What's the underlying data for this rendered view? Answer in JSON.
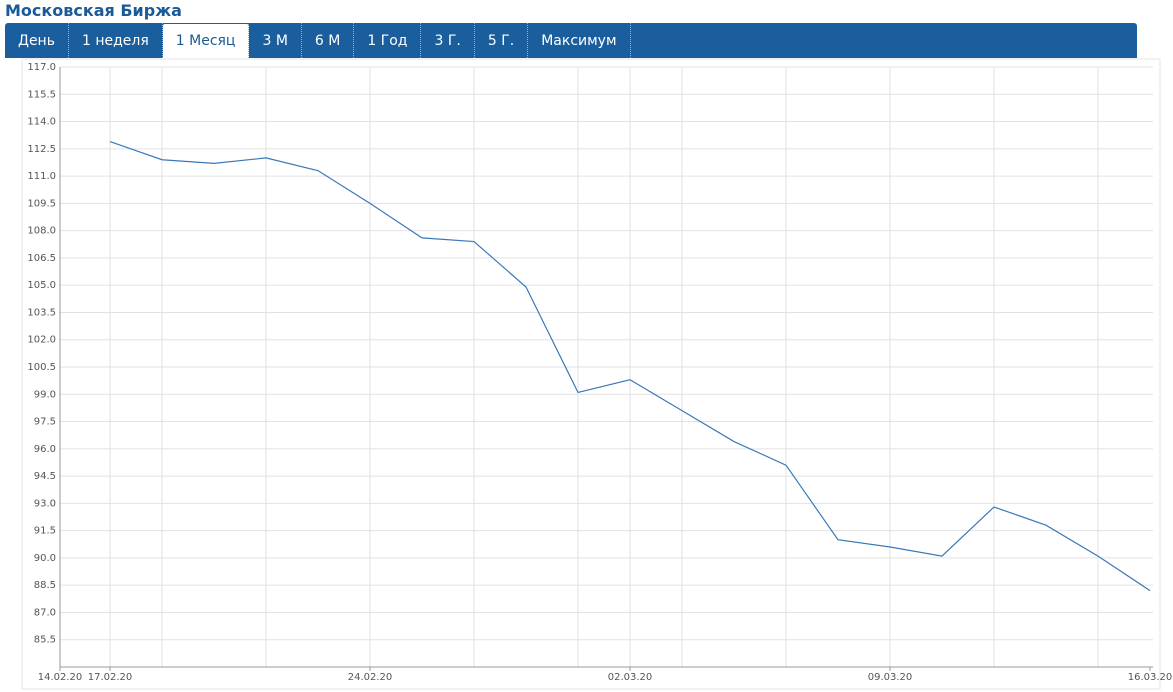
{
  "header": {
    "title": "Московская Биржа"
  },
  "tabs": [
    "День",
    "1 неделя",
    "1 Месяц",
    "3 М",
    "6 М",
    "1 Год",
    "3 Г.",
    "5 Г.",
    "Максимум"
  ],
  "chart_data": {
    "type": "line",
    "categories": [
      "14.02.20",
      "17.02.20",
      null,
      null,
      null,
      null,
      "24.02.20",
      null,
      null,
      null,
      null,
      "02.03.20",
      null,
      null,
      null,
      null,
      "09.03.20",
      null,
      null,
      null,
      null,
      "16.03.20"
    ],
    "values": [
      null,
      112.9,
      111.9,
      111.7,
      112.0,
      111.3,
      109.5,
      107.6,
      107.4,
      104.9,
      99.1,
      99.8,
      98.1,
      96.4,
      95.1,
      91.0,
      90.6,
      90.1,
      92.8,
      91.8,
      90.1,
      88.2
    ],
    "color": "#3a78b8",
    "ylim": [
      84,
      117
    ],
    "yticks": [
      {
        "value": 117,
        "label": "117.0"
      },
      115.5,
      {
        "value": 114,
        "label": "114.0"
      },
      112.5,
      {
        "value": 111,
        "label": "111.0"
      },
      109.5,
      {
        "value": 108,
        "label": "108.0"
      },
      106.5,
      {
        "value": 105,
        "label": "105.0"
      },
      103.5,
      {
        "value": 102,
        "label": "102.0"
      },
      100.5,
      {
        "value": 99,
        "label": "99.0"
      },
      97.5,
      {
        "value": 96,
        "label": "96.0"
      },
      94.5,
      {
        "value": 93,
        "label": "93.0"
      },
      91.5,
      {
        "value": 90,
        "label": "90.0"
      },
      88.5,
      {
        "value": 87,
        "label": "87.0"
      },
      85.5
    ],
    "grid": true
  }
}
